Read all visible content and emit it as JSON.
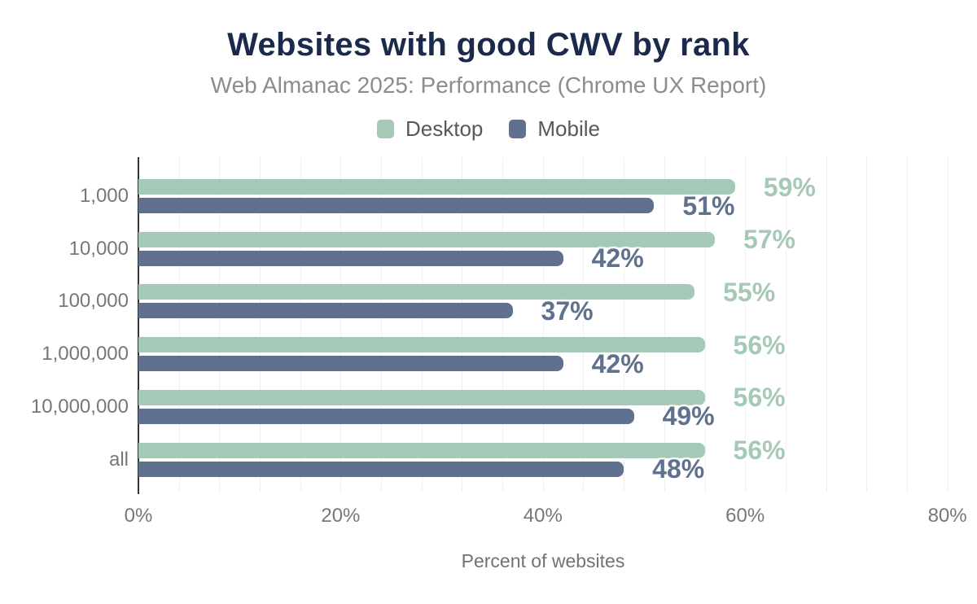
{
  "header": {
    "title": "Websites with good CWV by rank",
    "subtitle": "Web Almanac 2025: Performance (Chrome UX Report)"
  },
  "legend": {
    "items": [
      {
        "label": "Desktop",
        "color": "#a6c9b7"
      },
      {
        "label": "Mobile",
        "color": "#5f718e"
      }
    ]
  },
  "chart_data": {
    "type": "bar",
    "orientation": "horizontal",
    "title": "Websites with good CWV by rank",
    "subtitle": "Web Almanac 2025: Performance (Chrome UX Report)",
    "categories": [
      "1,000",
      "10,000",
      "100,000",
      "1,000,000",
      "10,000,000",
      "all"
    ],
    "series": [
      {
        "name": "Desktop",
        "color": "#a6c9b7",
        "values": [
          59,
          57,
          55,
          56,
          56,
          56
        ]
      },
      {
        "name": "Mobile",
        "color": "#5f718e",
        "values": [
          51,
          42,
          37,
          42,
          49,
          48
        ]
      }
    ],
    "value_suffix": "%",
    "xlabel": "Percent of websites",
    "x_ticks": [
      {
        "label": "0%",
        "value": 0
      },
      {
        "label": "20%",
        "value": 20
      },
      {
        "label": "40%",
        "value": 40
      },
      {
        "label": "60%",
        "value": 60
      },
      {
        "label": "80%",
        "value": 80
      }
    ],
    "xlim": [
      0,
      80
    ],
    "grid": "vertical, minor lines every 4%",
    "legend_position": "top"
  },
  "colors": {
    "title_text": "#1b2a4a",
    "subtitle_text": "#8a8c90",
    "legend_text": "#56585c",
    "axis_text": "#76777a",
    "gridline": "#f0efef",
    "axis_line": "#333333",
    "value_label_halo": "#ffffff",
    "background": "#ffffff"
  }
}
